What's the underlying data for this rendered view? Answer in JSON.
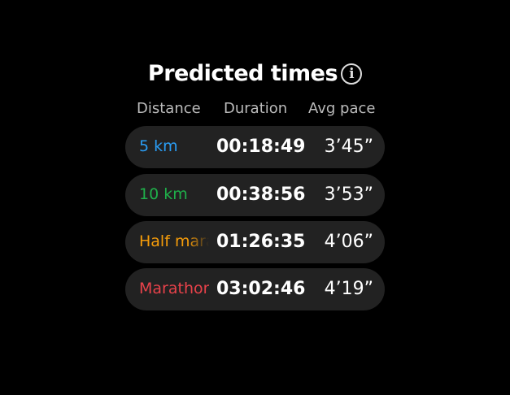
{
  "title": "Predicted times",
  "info_icon": "info-icon",
  "headers": {
    "distance": "Distance",
    "duration": "Duration",
    "pace": "Avg pace"
  },
  "rows": [
    {
      "distance": "5 km",
      "duration": "00:18:49",
      "pace": "3’45”",
      "color": "#2a9df4"
    },
    {
      "distance": "10 km",
      "duration": "00:38:56",
      "pace": "3’53”",
      "color": "#1fb04a"
    },
    {
      "distance": "Half marathon",
      "duration": "01:26:35",
      "pace": "4’06”",
      "color": "#f59c0a"
    },
    {
      "distance": "Marathon",
      "duration": "03:02:46",
      "pace": "4’19”",
      "color": "#e8424a"
    }
  ]
}
